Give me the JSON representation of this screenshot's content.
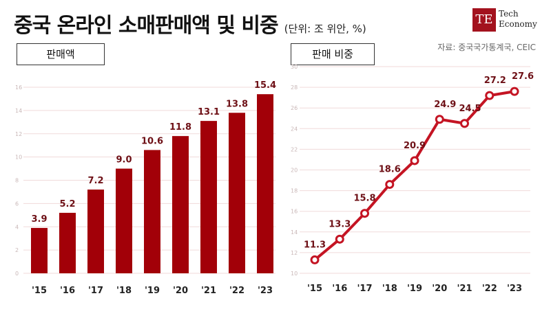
{
  "header": {
    "title": "중국 온라인 소매판매액 및 비중",
    "unit": "(단위: 조 위안, %)",
    "logo_text_1": "Tech",
    "logo_text_2": "Economy",
    "logo_mark": "TE",
    "source": "자료: 중국국가통계국, CEIC"
  },
  "colors": {
    "bar": "#a20008",
    "line": "#c41423",
    "label": "#6e1016"
  },
  "chart_data": [
    {
      "type": "bar",
      "title": "판매액",
      "categories": [
        "'15",
        "'16",
        "'17",
        "'18",
        "'19",
        "'20",
        "'21",
        "'22",
        "'23"
      ],
      "values": [
        3.9,
        5.2,
        7.2,
        9.0,
        10.6,
        11.8,
        13.1,
        13.8,
        15.4
      ],
      "value_labels": [
        "3.9",
        "5.2",
        "7.2",
        "9.0",
        "10.6",
        "11.8",
        "13.1",
        "13.8",
        "15.4"
      ],
      "ylim": [
        0,
        16
      ],
      "yticks": [
        0,
        2,
        4,
        6,
        8,
        10,
        12,
        14,
        16
      ],
      "ytick_labels": [
        "0",
        "2",
        "4",
        "6",
        "8",
        "10",
        "12",
        "14",
        "16"
      ],
      "grid": true
    },
    {
      "type": "line",
      "title": "판매 비중",
      "categories": [
        "'15",
        "'16",
        "'17",
        "'18",
        "'19",
        "'20",
        "'21",
        "'22",
        "'23"
      ],
      "values": [
        11.3,
        13.3,
        15.8,
        18.6,
        20.9,
        24.9,
        24.5,
        27.2,
        27.6
      ],
      "value_labels": [
        "11.3",
        "13.3",
        "15.8",
        "18.6",
        "20.9",
        "24.9",
        "24.5",
        "27.2",
        "27.6"
      ],
      "ylim": [
        10,
        30
      ],
      "yticks": [
        10,
        12,
        14,
        16,
        18,
        20,
        22,
        24,
        26,
        28,
        30
      ],
      "ytick_labels": [
        "10",
        "12",
        "14",
        "16",
        "18",
        "20",
        "22",
        "24",
        "26",
        "28",
        "30"
      ],
      "grid": true
    }
  ]
}
